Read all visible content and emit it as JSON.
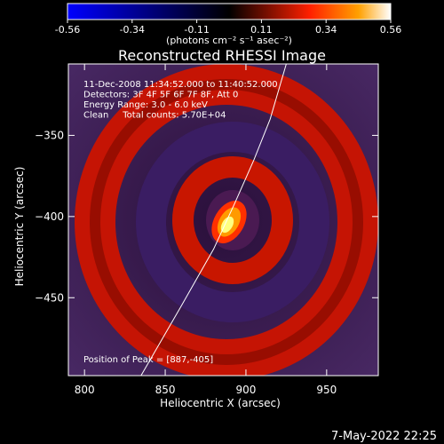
{
  "chart_data": {
    "type": "heatmap",
    "title": "Reconstructed RHESSI Image",
    "xlabel": "Heliocentric X (arcsec)",
    "ylabel": "Heliocentric Y (arcsec)",
    "xlim": [
      790,
      982
    ],
    "ylim": [
      -498,
      -306
    ],
    "x_ticks": [
      800,
      850,
      900,
      950
    ],
    "y_ticks": [
      -350,
      -400,
      -450
    ],
    "colorbar": {
      "min": -0.56,
      "max": 0.56,
      "ticks": [
        "-0.56",
        "-0.34",
        "-0.11",
        "0.11",
        "0.34",
        "0.56"
      ],
      "units_label": "(photons cm⁻² s⁻¹ asec⁻²)",
      "colors": [
        "#0000ff",
        "#000000",
        "#ff0000",
        "#ffffff"
      ]
    },
    "annotations": [
      "11-Dec-2008 11:34:52.000 to 11:40:52.000",
      "Detectors: 3F 4F 5F 6F 7F 8F, Att 0",
      "Energy Range: 3.0 - 6.0 keV",
      "Clean     Total counts: 5.70E+04"
    ],
    "peak_label": "Position of Peak = [887,-405]",
    "peak": [
      887,
      -405
    ],
    "limb_line": [
      [
        835,
        -498
      ],
      [
        860,
        -455
      ],
      [
        880,
        -420
      ],
      [
        893,
        -392
      ],
      [
        905,
        -365
      ],
      [
        915,
        -340
      ],
      [
        925,
        -306
      ]
    ]
  },
  "footer": {
    "date": "7-May-2022 22:25"
  }
}
